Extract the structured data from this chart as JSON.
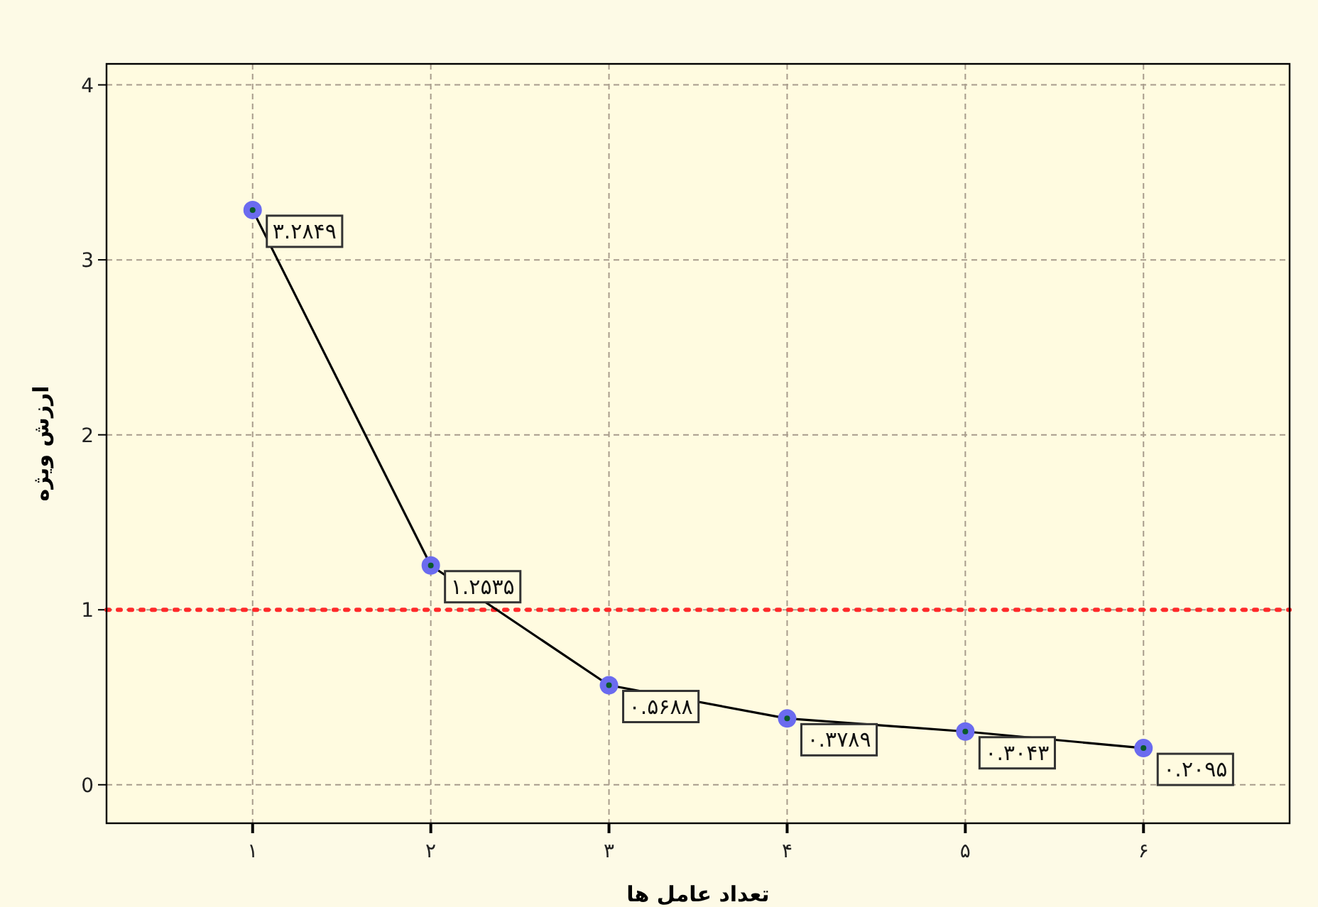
{
  "chart_data": {
    "type": "line",
    "xlabel": "تعداد عامل ها",
    "ylabel": "ارزش ویژه",
    "categories": [
      "۱",
      "۲",
      "۳",
      "۴",
      "۵",
      "۶"
    ],
    "series": [
      {
        "color": "#6b6bef",
        "values": [
          3.2849,
          1.2535,
          0.5688,
          0.3789,
          0.3043,
          0.2095
        ],
        "value_labels": [
          "۳.۲۸۴۹",
          "۱.۲۵۳۵",
          "۰.۵۶۸۸",
          "۰.۳۷۸۹",
          "۰.۳۰۴۳",
          "۰.۲۰۹۵"
        ]
      }
    ],
    "ylim": [
      -0.22,
      4.12
    ],
    "yticks": [
      0,
      1,
      2,
      3,
      4
    ],
    "ref_lines": [
      {
        "axis": "y",
        "value": 1,
        "color": "#ff2a2a",
        "line_style": "dotted"
      }
    ],
    "grid": true,
    "marker": "circle",
    "line_style": "solid"
  }
}
